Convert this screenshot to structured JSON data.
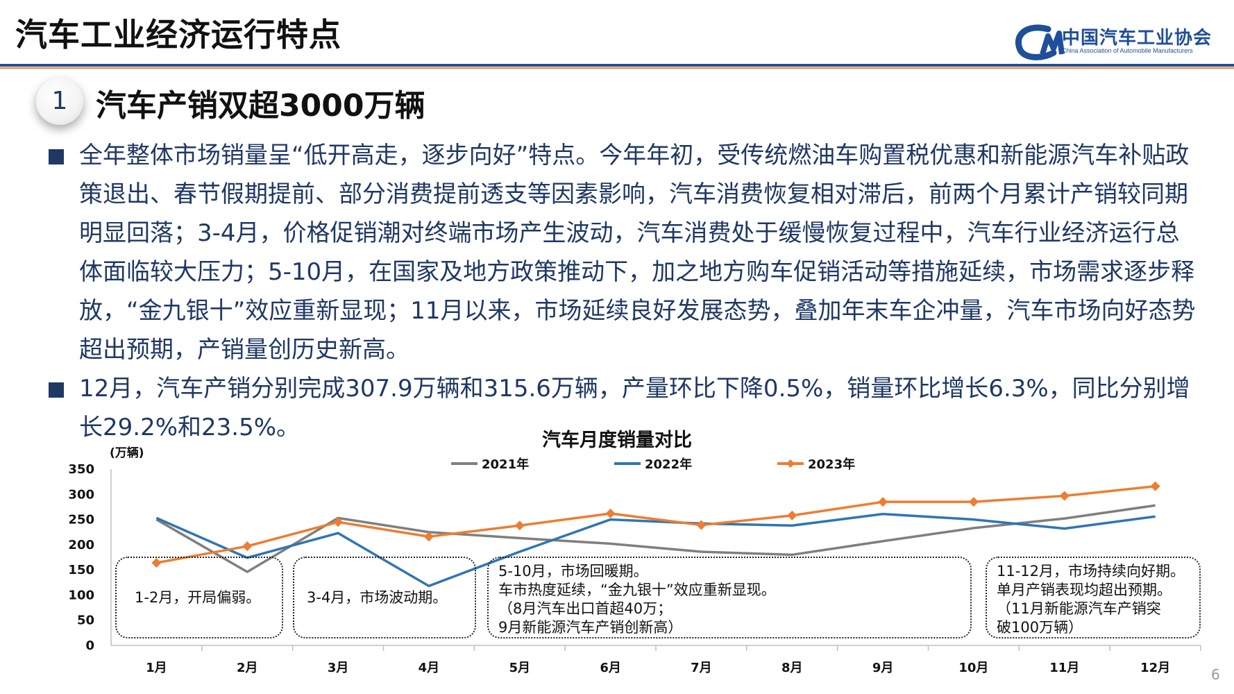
{
  "header": {
    "title": "汽车工业经济运行特点",
    "org_name": "中国汽车工业协会",
    "org_name_en": "China Association of Automobile Manufacturers"
  },
  "section": {
    "number": "1",
    "title": "汽车产销双超3000万辆"
  },
  "bullets": [
    "全年整体市场销量呈“低开高走，逐步向好”特点。今年年初，受传统燃油车购置税优惠和新能源汽车补贴政策退出、春节假期提前、部分消费提前透支等因素影响，汽车消费恢复相对滞后，前两个月累计产销较同期明显回落；3-4月，价格促销潮对终端市场产生波动，汽车消费处于缓慢恢复过程中，汽车行业经济运行总体面临较大压力；5-10月，在国家及地方政策推动下，加之地方购车促销活动等措施延续，市场需求逐步释放，“金九银十”效应重新显现；11月以来，市场延续良好发展态势，叠加年末车企冲量，汽车市场向好态势超出预期，产销量创历史新高。",
    "12月，汽车产销分别完成307.9万辆和315.6万辆，产量环比下降0.5%，销量环比增长6.3%，同比分别增长29.2%和23.5%。"
  ],
  "annotations": [
    "1-2月，开局偏弱。",
    "3-4月，市场波动期。",
    "5-10月，市场回暖期。\n车市热度延续，“金九银十”效应重新显现。\n（8月汽车出口首超40万；\n  9月新能源汽车产销创新高）",
    "11-12月，市场持续向好期。\n单月产销表现均超出预期。\n（11月新能源汽车产销突\n破100万辆）"
  ],
  "page_number": "6",
  "chart_data": {
    "type": "line",
    "title": "汽车月度销量对比",
    "unit": "(万辆)",
    "categories": [
      "1月",
      "2月",
      "3月",
      "4月",
      "5月",
      "6月",
      "7月",
      "8月",
      "9月",
      "10月",
      "11月",
      "12月"
    ],
    "ylim": [
      0,
      350
    ],
    "yticks": [
      0,
      50,
      100,
      150,
      200,
      250,
      300,
      350
    ],
    "grid": false,
    "legend_position": "top",
    "series": [
      {
        "name": "2021年",
        "color": "#7f7f7f",
        "marker": "none",
        "values": [
          250,
          146,
          253,
          225,
          213,
          202,
          186,
          180,
          207,
          233,
          252,
          278
        ]
      },
      {
        "name": "2022年",
        "color": "#2e75b6",
        "marker": "none",
        "values": [
          253,
          174,
          223,
          118,
          186,
          250,
          242,
          238,
          261,
          250,
          232,
          256
        ]
      },
      {
        "name": "2023年",
        "color": "#ed7d31",
        "marker": "diamond",
        "values": [
          164,
          197,
          245,
          216,
          238,
          262,
          239,
          258,
          285,
          285,
          297,
          316
        ]
      }
    ]
  },
  "colors": {
    "brand_blue": "#1f4e9a",
    "accent_orange": "#ed7d31",
    "text_navy": "#1f3864"
  }
}
